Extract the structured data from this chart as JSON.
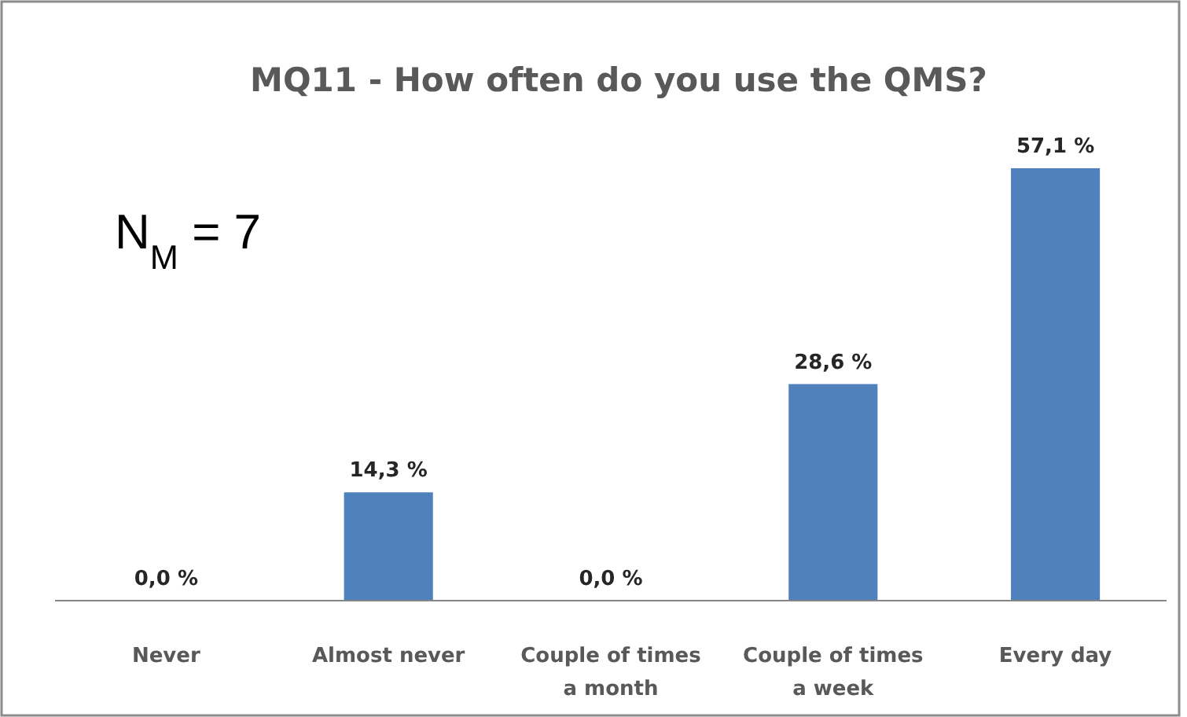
{
  "chart_data": {
    "type": "bar",
    "title": "MQ11 - How often do you use the QMS?",
    "categories": [
      "Never",
      "Almost never",
      "Couple of times a month",
      "Couple of times a week",
      "Every day"
    ],
    "values": [
      0,
      14.3,
      0,
      28.6,
      57.1
    ],
    "value_labels": [
      "0,0 %",
      "14,3 %",
      "0,0 %",
      "28,6 %",
      "57,1 %"
    ],
    "color": "#4f81bd",
    "annotations": [
      "N$_{M}$ = 7"
    ],
    "stacked": false
  }
}
